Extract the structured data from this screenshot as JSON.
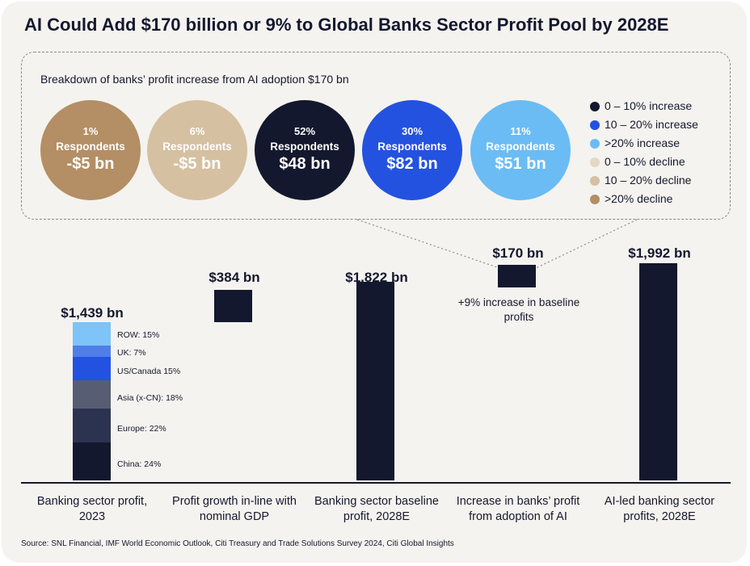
{
  "title": "AI Could Add $170 billion or 9% to Global Banks Sector Profit Pool by 2028E",
  "breakdown": {
    "subtitle": "Breakdown of banks’ profit increase from AI adoption $170 bn",
    "circles": [
      {
        "pct": "1%",
        "respondents": "Respondents",
        "value": "-$5 bn",
        "color": "#b48e64"
      },
      {
        "pct": "6%",
        "respondents": "Respondents",
        "value": "-$5 bn",
        "color": "#d6c0a2"
      },
      {
        "pct": "52%",
        "respondents": "Respondents",
        "value": "$48 bn",
        "color": "#14182e"
      },
      {
        "pct": "30%",
        "respondents": "Respondents",
        "value": "$82 bn",
        "color": "#2452e0"
      },
      {
        "pct": "11%",
        "respondents": "Respondents",
        "value": "$51 bn",
        "color": "#6bbcf4"
      }
    ],
    "legend": [
      {
        "label": "0 – 10% increase",
        "color": "#14182e"
      },
      {
        "label": "10 – 20% increase",
        "color": "#2452e0"
      },
      {
        "label": ">20% increase",
        "color": "#6bbcf4"
      },
      {
        "label": "0 – 10% decline",
        "color": "#e6d8c4"
      },
      {
        "label": "10 – 20% decline",
        "color": "#d6c0a2"
      },
      {
        "label": ">20% decline",
        "color": "#b48e64"
      }
    ]
  },
  "chart_data": {
    "type": "bar",
    "subtype": "waterfall",
    "categories": [
      "Banking sector profit, 2023",
      "Profit growth in-line with nominal GDP",
      "Banking sector baseline profit, 2028E",
      "Increase in banks’ profit from adoption of AI",
      "AI-led banking sector profits, 2028E"
    ],
    "values": [
      1439,
      384,
      1822,
      170,
      1992
    ],
    "value_labels": [
      "$1,439 bn",
      "$384 bn",
      "$1,822 bn",
      "$170 bn",
      "$1,992 bn"
    ],
    "floating": [
      false,
      true,
      false,
      true,
      false
    ],
    "bar_color": "#14182e",
    "stack_2023": [
      {
        "label": "China: 24%",
        "share": 24,
        "color": "#14182e"
      },
      {
        "label": "Europe: 22%",
        "share": 22,
        "color": "#2c3350"
      },
      {
        "label": "Asia (x-CN): 18%",
        "share": 18,
        "color": "#575d73"
      },
      {
        "label": "US/Canada 15%",
        "share": 15,
        "color": "#2452e0"
      },
      {
        "label": "UK: 7%",
        "share": 7,
        "color": "#4f7ee8"
      },
      {
        "label": "ROW: 15%",
        "share": 15,
        "color": "#7ec4f8"
      }
    ],
    "annotation": "+9% increase in baseline profits"
  },
  "source": "Source: SNL Financial, IMF World Economic Outlook, Citi Treasury and Trade Solutions Survey 2024, Citi Global Insights"
}
